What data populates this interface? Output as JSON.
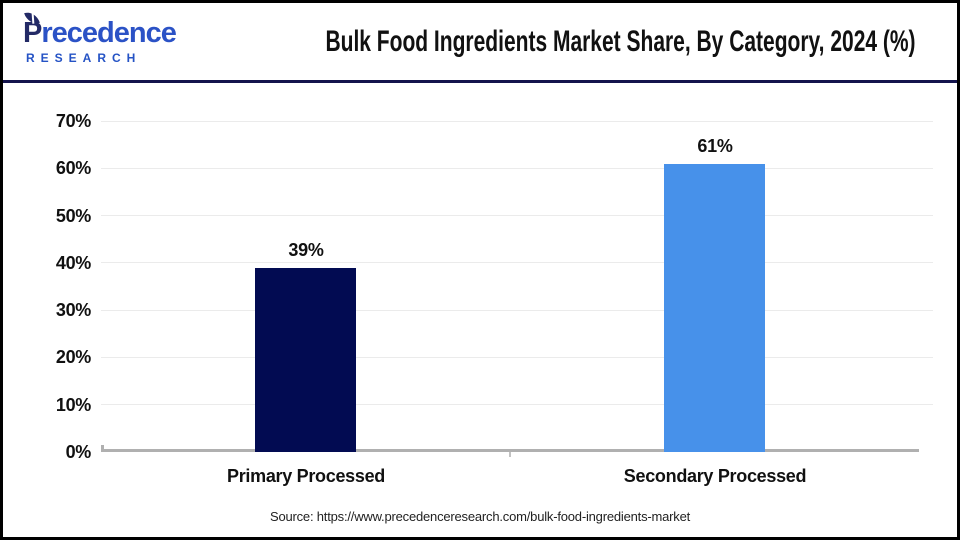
{
  "logo": {
    "brand_first_letter": "P",
    "brand_rest": "recedence",
    "brand_sub": "RESEARCH"
  },
  "header": {
    "title": "Bulk Food Ingredients Market Share, By Category, 2024 (%)"
  },
  "chart_data": {
    "type": "bar",
    "title": "Bulk Food Ingredients Market Share, By Category, 2024 (%)",
    "categories": [
      "Primary Processed",
      "Secondary Processed"
    ],
    "values": [
      39,
      61
    ],
    "value_labels": [
      "39%",
      "61%"
    ],
    "bar_colors": [
      "#020b52",
      "#4791ea"
    ],
    "ylim": [
      0,
      70
    ],
    "ytick_step": 10,
    "ytick_labels": [
      "0%",
      "10%",
      "20%",
      "30%",
      "40%",
      "50%",
      "60%",
      "70%"
    ],
    "grid": true,
    "legend": false,
    "xlabel": "",
    "ylabel": ""
  },
  "footer": {
    "source": "Source: https://www.precedenceresearch.com/bulk-food-ingredients-market"
  },
  "colors": {
    "bar_primary": "#020b52",
    "bar_secondary": "#4791ea",
    "divider_navy": "#14144d",
    "gridline": "#ebebeb",
    "axis": "#b0b0b0",
    "logo_navy": "#232a66",
    "logo_blue": "#2b52c6"
  }
}
